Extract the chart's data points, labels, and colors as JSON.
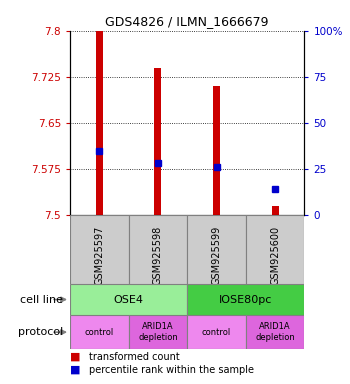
{
  "title": "GDS4826 / ILMN_1666679",
  "samples": [
    "GSM925597",
    "GSM925598",
    "GSM925599",
    "GSM925600"
  ],
  "bar_values": [
    7.8,
    7.74,
    7.71,
    7.515
  ],
  "bar_base": 7.5,
  "percentile_values": [
    7.605,
    7.585,
    7.578,
    7.543
  ],
  "ylim": [
    7.5,
    7.8
  ],
  "y_ticks": [
    7.5,
    7.575,
    7.65,
    7.725,
    7.8
  ],
  "y_tick_labels": [
    "7.5",
    "7.575",
    "7.65",
    "7.725",
    "7.8"
  ],
  "y2_ticks": [
    0,
    25,
    50,
    75,
    100
  ],
  "y2_tick_labels": [
    "0",
    "25",
    "50",
    "75",
    "100%"
  ],
  "bar_color": "#cc0000",
  "percentile_color": "#0000cc",
  "cell_line_groups": [
    {
      "label": "OSE4",
      "start": 0,
      "end": 2,
      "color": "#99ee99"
    },
    {
      "label": "IOSE80pc",
      "start": 2,
      "end": 4,
      "color": "#44cc44"
    }
  ],
  "protocol_groups": [
    {
      "label": "control",
      "start": 0,
      "end": 1,
      "color": "#ee88ee"
    },
    {
      "label": "ARID1A\ndepletion",
      "start": 1,
      "end": 2,
      "color": "#dd66dd"
    },
    {
      "label": "control",
      "start": 2,
      "end": 3,
      "color": "#ee88ee"
    },
    {
      "label": "ARID1A\ndepletion",
      "start": 3,
      "end": 4,
      "color": "#dd66dd"
    }
  ],
  "cell_line_label": "cell line",
  "protocol_label": "protocol",
  "legend_red_label": "transformed count",
  "legend_blue_label": "percentile rank within the sample",
  "sample_box_color": "#cccccc",
  "bar_width": 0.12
}
